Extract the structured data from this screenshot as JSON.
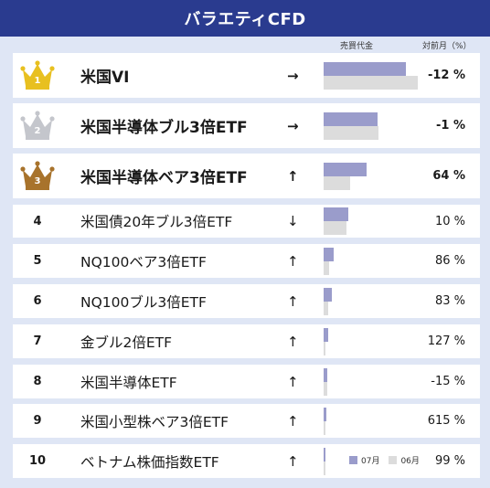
{
  "header": {
    "title": "バラエティCFD"
  },
  "columns": {
    "volume": "売買代金",
    "change": "対前月（%）"
  },
  "legend": {
    "current": "07月",
    "previous": "06月"
  },
  "colors": {
    "header": "#2a3b8f",
    "current_bar": "#9a9ccb",
    "previous_bar": "#dcdcdc",
    "gold": "#e8c020",
    "silver": "#c4c6cc",
    "bronze": "#a8732c"
  },
  "rows": [
    {
      "rank": "1",
      "name": "米国VI",
      "trend": "→",
      "change": "-12 %",
      "crown": "gold"
    },
    {
      "rank": "2",
      "name": "米国半導体ブル3倍ETF",
      "trend": "→",
      "change": "-1 %",
      "crown": "silver"
    },
    {
      "rank": "3",
      "name": "米国半導体ベア3倍ETF",
      "trend": "↑",
      "change": "64 %",
      "crown": "bronze"
    },
    {
      "rank": "4",
      "name": "米国債20年ブル3倍ETF",
      "trend": "↓",
      "change": "10 %"
    },
    {
      "rank": "5",
      "name": "NQ100ベア3倍ETF",
      "trend": "↑",
      "change": "86 %"
    },
    {
      "rank": "6",
      "name": "NQ100ブル3倍ETF",
      "trend": "↑",
      "change": "83 %"
    },
    {
      "rank": "7",
      "name": "金ブル2倍ETF",
      "trend": "↑",
      "change": "127 %"
    },
    {
      "rank": "8",
      "name": "米国半導体ETF",
      "trend": "↑",
      "change": "-15 %"
    },
    {
      "rank": "9",
      "name": "米国小型株ベア3倍ETF",
      "trend": "↑",
      "change": "615 %"
    },
    {
      "rank": "10",
      "name": "ベトナム株価指数ETF",
      "trend": "↑",
      "change": "99 %"
    }
  ],
  "chart_data": {
    "type": "bar",
    "categories": [
      "米国VI",
      "米国半導体ブル3倍ETF",
      "米国半導体ベア3倍ETF",
      "米国債20年ブル3倍ETF",
      "NQ100ベア3倍ETF",
      "NQ100ブル3倍ETF",
      "金ブル2倍ETF",
      "米国半導体ETF",
      "米国小型株ベア3倍ETF",
      "ベトナム株価指数ETF"
    ],
    "series": [
      {
        "name": "07月",
        "values": [
          90,
          59,
          47,
          27,
          11,
          9,
          5,
          4,
          3,
          2
        ]
      },
      {
        "name": "06月",
        "values": [
          103,
          60,
          29,
          25,
          6,
          5,
          2,
          4,
          0.4,
          1
        ]
      }
    ]
  }
}
